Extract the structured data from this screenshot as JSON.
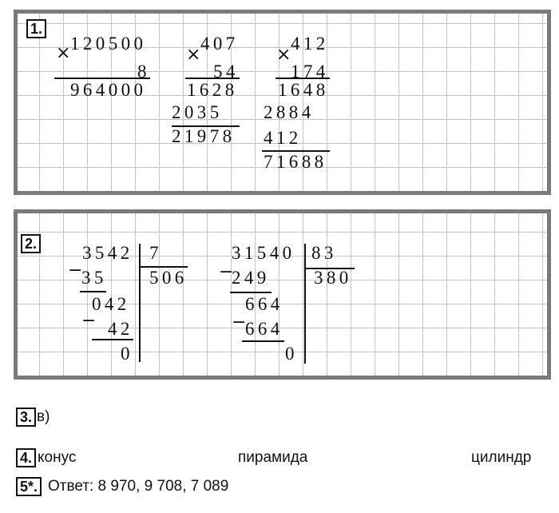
{
  "task1": {
    "label": "1.",
    "mult1": {
      "sign": "×",
      "a": "120500",
      "b": "8",
      "result": "964000"
    },
    "mult2": {
      "sign": "×",
      "a": "407",
      "b": "54",
      "p1": "1628",
      "p2": "2035",
      "result": "21978"
    },
    "mult3": {
      "sign": "×",
      "a": "412",
      "b": "174",
      "p1": "1648",
      "p2": "2884",
      "p3": "412",
      "result": "71688"
    }
  },
  "task2": {
    "label": "2.",
    "div1": {
      "dividend": "3542",
      "divisor": "7",
      "quotient": "506",
      "minus": "−",
      "s1": "35",
      "r1": "042",
      "s2": "42",
      "rem": "0"
    },
    "div2": {
      "dividend": "31540",
      "divisor": "83",
      "quotient": "380",
      "minus": "−",
      "s1": "249",
      "r1": "664",
      "s2": "664",
      "rem": "0"
    }
  },
  "task3": {
    "label": "3.",
    "answer": "в)"
  },
  "task4": {
    "label": "4.",
    "items": [
      "конус",
      "пирамида",
      "цилиндр"
    ]
  },
  "task5": {
    "label": "5*.",
    "answer": "Ответ: 8 970, 9 708, 7 089"
  }
}
